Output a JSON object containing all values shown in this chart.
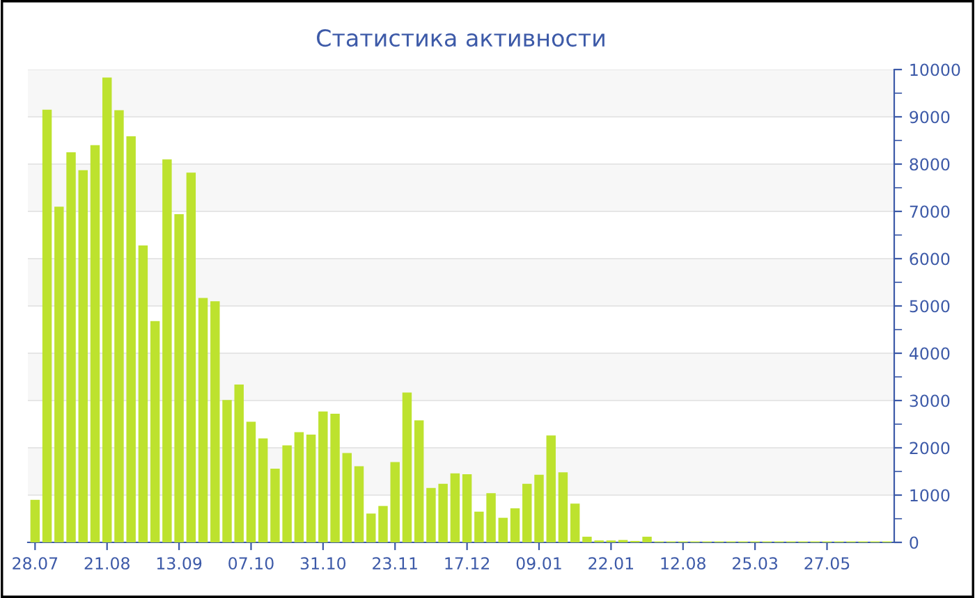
{
  "chart_data": {
    "type": "bar",
    "title": "Статистика активности",
    "categories": [
      "28.07",
      null,
      null,
      null,
      null,
      null,
      "21.08",
      null,
      null,
      null,
      null,
      null,
      "13.09",
      null,
      null,
      null,
      null,
      null,
      "07.10",
      null,
      null,
      null,
      null,
      null,
      "31.10",
      null,
      null,
      null,
      null,
      null,
      "23.11",
      null,
      null,
      null,
      null,
      null,
      "17.12",
      null,
      null,
      null,
      null,
      null,
      "09.01",
      null,
      null,
      null,
      null,
      null,
      "22.01",
      null,
      null,
      null,
      null,
      null,
      "12.08",
      null,
      null,
      null,
      null,
      null,
      "25.03",
      null,
      null,
      null,
      null,
      null,
      "27.05",
      null,
      null,
      null,
      null,
      null
    ],
    "values": [
      900,
      9150,
      7100,
      8250,
      7870,
      8400,
      9830,
      9140,
      8590,
      6280,
      4680,
      8100,
      6940,
      7820,
      5170,
      5100,
      3010,
      3340,
      2550,
      2200,
      1560,
      2050,
      2330,
      2280,
      2770,
      2720,
      1890,
      1610,
      610,
      770,
      1700,
      3170,
      2580,
      1150,
      1240,
      1460,
      1440,
      650,
      1040,
      520,
      720,
      1240,
      1430,
      2260,
      1480,
      820,
      120,
      40,
      40,
      50,
      30,
      120,
      20,
      20,
      20,
      20,
      20,
      20,
      20,
      20,
      20,
      20,
      20,
      20,
      20,
      20,
      20,
      20,
      20,
      20,
      20,
      20
    ],
    "color": "#bde22e",
    "ylim": [
      0,
      10000
    ],
    "yticks": [
      0,
      {
        "value": 500,
        "label": null
      },
      1000,
      {
        "value": 1500,
        "label": null
      },
      2000,
      {
        "value": 2500,
        "label": null
      },
      3000,
      {
        "value": 3500,
        "label": null
      },
      4000,
      {
        "value": 4500,
        "label": null
      },
      5000,
      {
        "value": 5500,
        "label": null
      },
      6000,
      {
        "value": 6500,
        "label": null
      },
      7000,
      {
        "value": 7500,
        "label": null
      },
      8000,
      {
        "value": 8500,
        "label": null
      },
      9000,
      {
        "value": 9500,
        "label": null
      },
      10000
    ],
    "grid": "y"
  }
}
